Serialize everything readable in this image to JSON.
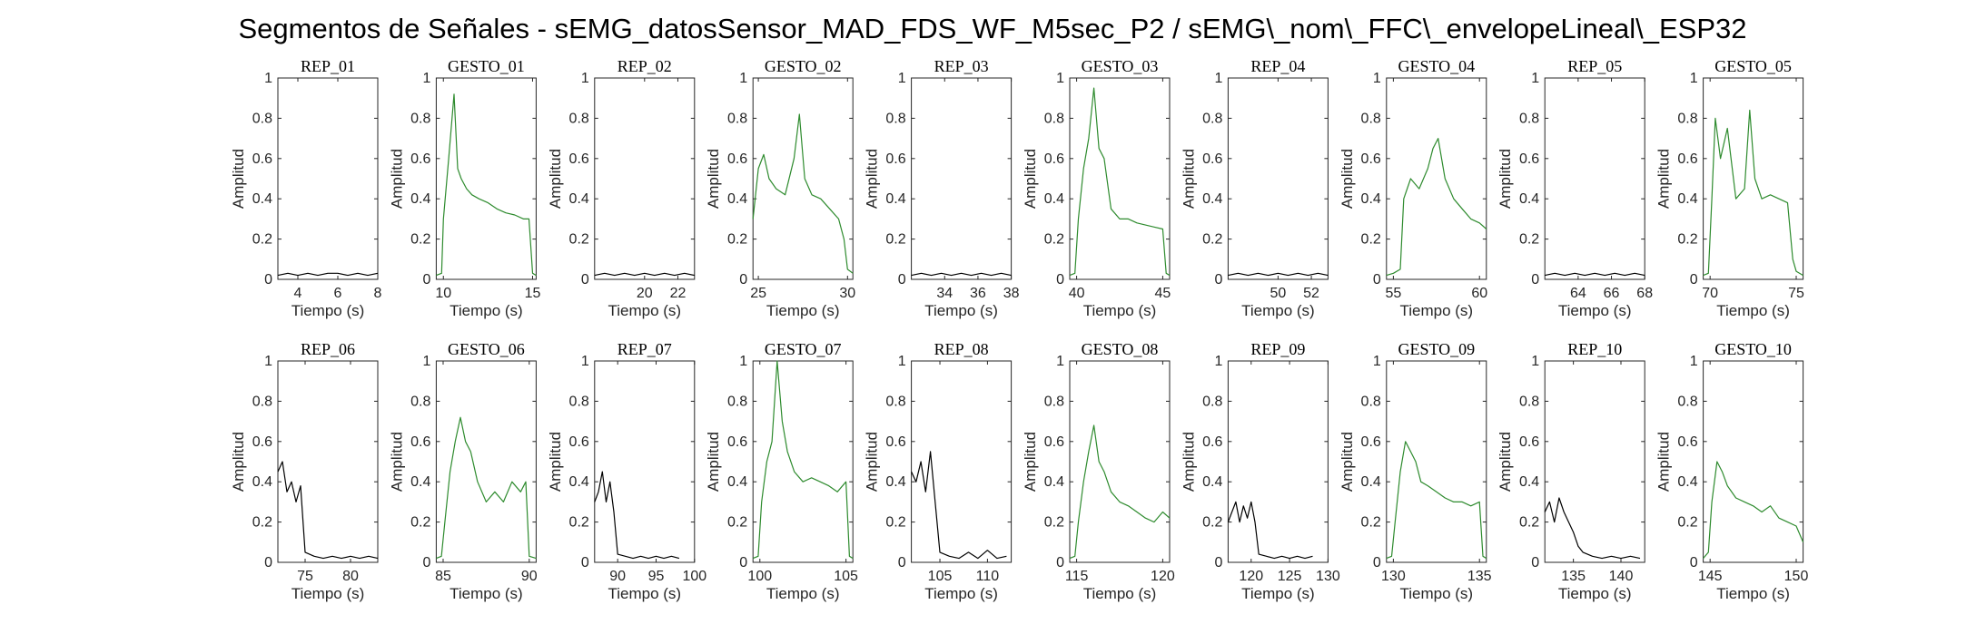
{
  "figure": {
    "title": "Segmentos de Señales - sEMG_datosSensor_MAD_FDS_WF_M5sec_P2 / sEMG\\_nom\\_FFC\\_envelopeLineal\\_ESP32"
  },
  "colors": {
    "rep": "#000000",
    "gesto": "#2e8b2e",
    "axes": "#262626"
  },
  "chart_data": [
    {
      "type": "line",
      "title": "REP_01",
      "xlabel": "Tiempo (s)",
      "ylabel": "Amplitud",
      "xlim": [
        3,
        8
      ],
      "ylim": [
        0,
        1
      ],
      "xticks": [
        4,
        6,
        8
      ],
      "yticks": [
        0,
        0.2,
        0.4,
        0.6,
        0.8,
        1
      ],
      "color": "#000000",
      "x": [
        3.0,
        3.5,
        4.0,
        4.5,
        5.0,
        5.5,
        6.0,
        6.5,
        7.0,
        7.5,
        8.0
      ],
      "y": [
        0.02,
        0.03,
        0.02,
        0.03,
        0.02,
        0.03,
        0.03,
        0.02,
        0.03,
        0.02,
        0.03
      ]
    },
    {
      "type": "line",
      "title": "GESTO_01",
      "xlabel": "Tiempo (s)",
      "ylabel": "Amplitud",
      "xlim": [
        9.6,
        15.2
      ],
      "ylim": [
        0,
        1
      ],
      "xticks": [
        10,
        15
      ],
      "yticks": [
        0,
        0.2,
        0.4,
        0.6,
        0.8,
        1
      ],
      "color": "#2e8b2e",
      "x": [
        9.6,
        9.9,
        10.0,
        10.3,
        10.6,
        10.8,
        11.0,
        11.3,
        11.6,
        12.0,
        12.5,
        13.0,
        13.5,
        14.0,
        14.5,
        14.8,
        15.0,
        15.2
      ],
      "y": [
        0.02,
        0.03,
        0.3,
        0.6,
        0.92,
        0.55,
        0.5,
        0.45,
        0.42,
        0.4,
        0.38,
        0.35,
        0.33,
        0.32,
        0.3,
        0.3,
        0.03,
        0.02
      ]
    },
    {
      "type": "line",
      "title": "REP_02",
      "xlabel": "Tiempo (s)",
      "ylabel": "Amplitud",
      "xlim": [
        17,
        23
      ],
      "ylim": [
        0,
        1
      ],
      "xticks": [
        20,
        22
      ],
      "yticks": [
        0,
        0.2,
        0.4,
        0.6,
        0.8,
        1
      ],
      "color": "#000000",
      "x": [
        17,
        17.6,
        18.2,
        18.8,
        19.4,
        20,
        20.6,
        21.2,
        21.8,
        22.4,
        23
      ],
      "y": [
        0.02,
        0.03,
        0.02,
        0.03,
        0.02,
        0.03,
        0.02,
        0.03,
        0.02,
        0.03,
        0.02
      ]
    },
    {
      "type": "line",
      "title": "GESTO_02",
      "xlabel": "Tiempo (s)",
      "ylabel": "Amplitud",
      "xlim": [
        24.7,
        30.3
      ],
      "ylim": [
        0,
        1
      ],
      "xticks": [
        25,
        30
      ],
      "yticks": [
        0,
        0.2,
        0.4,
        0.6,
        0.8,
        1
      ],
      "color": "#2e8b2e",
      "x": [
        24.7,
        25.0,
        25.3,
        25.6,
        26.0,
        26.5,
        27.0,
        27.3,
        27.6,
        28.0,
        28.5,
        29.0,
        29.5,
        29.8,
        30.0,
        30.3
      ],
      "y": [
        0.3,
        0.55,
        0.62,
        0.5,
        0.45,
        0.42,
        0.6,
        0.82,
        0.5,
        0.42,
        0.4,
        0.35,
        0.3,
        0.2,
        0.05,
        0.03
      ]
    },
    {
      "type": "line",
      "title": "REP_03",
      "xlabel": "Tiempo (s)",
      "ylabel": "Amplitud",
      "xlim": [
        32,
        38
      ],
      "ylim": [
        0,
        1
      ],
      "xticks": [
        34,
        36,
        38
      ],
      "yticks": [
        0,
        0.2,
        0.4,
        0.6,
        0.8,
        1
      ],
      "color": "#000000",
      "x": [
        32,
        32.6,
        33.2,
        33.8,
        34.4,
        35,
        35.6,
        36.2,
        36.8,
        37.4,
        38
      ],
      "y": [
        0.02,
        0.03,
        0.02,
        0.03,
        0.02,
        0.03,
        0.02,
        0.03,
        0.02,
        0.03,
        0.02
      ]
    },
    {
      "type": "line",
      "title": "GESTO_03",
      "xlabel": "Tiempo (s)",
      "ylabel": "Amplitud",
      "xlim": [
        39.6,
        45.4
      ],
      "ylim": [
        0,
        1
      ],
      "xticks": [
        40,
        45
      ],
      "yticks": [
        0,
        0.2,
        0.4,
        0.6,
        0.8,
        1
      ],
      "color": "#2e8b2e",
      "x": [
        39.6,
        39.9,
        40.1,
        40.4,
        40.7,
        41.0,
        41.3,
        41.6,
        42.0,
        42.5,
        43.0,
        43.5,
        44.0,
        44.5,
        45.0,
        45.2,
        45.4
      ],
      "y": [
        0.02,
        0.03,
        0.3,
        0.55,
        0.7,
        0.95,
        0.65,
        0.6,
        0.35,
        0.3,
        0.3,
        0.28,
        0.27,
        0.26,
        0.25,
        0.03,
        0.02
      ]
    },
    {
      "type": "line",
      "title": "REP_04",
      "xlabel": "Tiempo (s)",
      "ylabel": "Amplitud",
      "xlim": [
        47,
        53
      ],
      "ylim": [
        0,
        1
      ],
      "xticks": [
        50,
        52
      ],
      "yticks": [
        0,
        0.2,
        0.4,
        0.6,
        0.8,
        1
      ],
      "color": "#000000",
      "x": [
        47,
        47.6,
        48.2,
        48.8,
        49.4,
        50,
        50.6,
        51.2,
        51.8,
        52.4,
        53
      ],
      "y": [
        0.02,
        0.03,
        0.02,
        0.03,
        0.02,
        0.03,
        0.02,
        0.03,
        0.02,
        0.03,
        0.02
      ]
    },
    {
      "type": "line",
      "title": "GESTO_04",
      "xlabel": "Tiempo (s)",
      "ylabel": "Amplitud",
      "xlim": [
        54.6,
        60.4
      ],
      "ylim": [
        0,
        1
      ],
      "xticks": [
        55,
        60
      ],
      "yticks": [
        0,
        0.2,
        0.4,
        0.6,
        0.8,
        1
      ],
      "color": "#2e8b2e",
      "x": [
        54.6,
        55.0,
        55.4,
        55.6,
        56.0,
        56.5,
        57.0,
        57.3,
        57.6,
        58.0,
        58.5,
        59.0,
        59.5,
        60.0,
        60.4
      ],
      "y": [
        0.02,
        0.03,
        0.05,
        0.4,
        0.5,
        0.45,
        0.55,
        0.65,
        0.7,
        0.5,
        0.4,
        0.35,
        0.3,
        0.28,
        0.25
      ]
    },
    {
      "type": "line",
      "title": "REP_05",
      "xlabel": "Tiempo (s)",
      "ylabel": "Amplitud",
      "xlim": [
        62,
        68
      ],
      "ylim": [
        0,
        1
      ],
      "xticks": [
        64,
        66,
        68
      ],
      "yticks": [
        0,
        0.2,
        0.4,
        0.6,
        0.8,
        1
      ],
      "color": "#000000",
      "x": [
        62,
        62.6,
        63.2,
        63.8,
        64.4,
        65,
        65.6,
        66.2,
        66.8,
        67.4,
        68
      ],
      "y": [
        0.02,
        0.03,
        0.02,
        0.03,
        0.02,
        0.03,
        0.02,
        0.03,
        0.02,
        0.03,
        0.02
      ]
    },
    {
      "type": "line",
      "title": "GESTO_05",
      "xlabel": "Tiempo (s)",
      "ylabel": "Amplitud",
      "xlim": [
        69.6,
        75.4
      ],
      "ylim": [
        0,
        1
      ],
      "xticks": [
        70,
        75
      ],
      "yticks": [
        0,
        0.2,
        0.4,
        0.6,
        0.8,
        1
      ],
      "color": "#2e8b2e",
      "x": [
        69.6,
        69.9,
        70.1,
        70.3,
        70.6,
        71.0,
        71.5,
        72.0,
        72.3,
        72.6,
        73.0,
        73.5,
        74.0,
        74.5,
        74.8,
        75.0,
        75.4
      ],
      "y": [
        0.02,
        0.03,
        0.4,
        0.8,
        0.6,
        0.75,
        0.4,
        0.45,
        0.84,
        0.5,
        0.4,
        0.42,
        0.4,
        0.38,
        0.1,
        0.04,
        0.02
      ]
    },
    {
      "type": "line",
      "title": "REP_06",
      "xlabel": "Tiempo (s)",
      "ylabel": "Amplitud",
      "xlim": [
        72,
        83
      ],
      "ylim": [
        0,
        1
      ],
      "xticks": [
        75,
        80
      ],
      "yticks": [
        0,
        0.2,
        0.4,
        0.6,
        0.8,
        1
      ],
      "color": "#000000",
      "x": [
        72,
        72.5,
        73,
        73.5,
        74,
        74.5,
        75,
        76,
        77,
        78,
        79,
        80,
        81,
        82,
        83
      ],
      "y": [
        0.45,
        0.5,
        0.35,
        0.4,
        0.3,
        0.38,
        0.05,
        0.03,
        0.02,
        0.03,
        0.02,
        0.03,
        0.02,
        0.03,
        0.02
      ]
    },
    {
      "type": "line",
      "title": "GESTO_06",
      "xlabel": "Tiempo (s)",
      "ylabel": "Amplitud",
      "xlim": [
        84.6,
        90.4
      ],
      "ylim": [
        0,
        1
      ],
      "xticks": [
        85,
        90
      ],
      "yticks": [
        0,
        0.2,
        0.4,
        0.6,
        0.8,
        1
      ],
      "color": "#2e8b2e",
      "x": [
        84.6,
        84.9,
        85.1,
        85.4,
        85.7,
        86.0,
        86.3,
        86.6,
        87.0,
        87.5,
        88.0,
        88.5,
        89.0,
        89.5,
        89.8,
        90.0,
        90.4
      ],
      "y": [
        0.02,
        0.03,
        0.2,
        0.45,
        0.6,
        0.72,
        0.6,
        0.55,
        0.4,
        0.3,
        0.35,
        0.3,
        0.4,
        0.35,
        0.4,
        0.03,
        0.02
      ]
    },
    {
      "type": "line",
      "title": "REP_07",
      "xlabel": "Tiempo (s)",
      "ylabel": "Amplitud",
      "xlim": [
        87,
        100
      ],
      "ylim": [
        0,
        1
      ],
      "xticks": [
        90,
        95,
        100
      ],
      "yticks": [
        0,
        0.2,
        0.4,
        0.6,
        0.8,
        1
      ],
      "color": "#000000",
      "x": [
        87,
        87.5,
        88,
        88.5,
        89,
        89.5,
        90,
        91,
        92,
        93,
        94,
        95,
        96,
        97,
        98
      ],
      "y": [
        0.3,
        0.35,
        0.45,
        0.3,
        0.4,
        0.25,
        0.04,
        0.03,
        0.02,
        0.03,
        0.02,
        0.03,
        0.02,
        0.03,
        0.02
      ]
    },
    {
      "type": "line",
      "title": "GESTO_07",
      "xlabel": "Tiempo (s)",
      "ylabel": "Amplitud",
      "xlim": [
        99.6,
        105.4
      ],
      "ylim": [
        0,
        1
      ],
      "xticks": [
        100,
        105
      ],
      "yticks": [
        0,
        0.2,
        0.4,
        0.6,
        0.8,
        1
      ],
      "color": "#2e8b2e",
      "x": [
        99.6,
        99.9,
        100.1,
        100.4,
        100.7,
        101.0,
        101.3,
        101.6,
        102.0,
        102.5,
        103.0,
        103.5,
        104.0,
        104.5,
        105.0,
        105.2,
        105.4
      ],
      "y": [
        0.02,
        0.03,
        0.3,
        0.5,
        0.6,
        1.0,
        0.7,
        0.55,
        0.45,
        0.4,
        0.42,
        0.4,
        0.38,
        0.35,
        0.4,
        0.03,
        0.02
      ]
    },
    {
      "type": "line",
      "title": "REP_08",
      "xlabel": "Tiempo (s)",
      "ylabel": "Amplitud",
      "xlim": [
        102,
        112.5
      ],
      "ylim": [
        0,
        1
      ],
      "xticks": [
        105,
        110
      ],
      "yticks": [
        0,
        0.2,
        0.4,
        0.6,
        0.8,
        1
      ],
      "color": "#000000",
      "x": [
        102,
        102.5,
        103,
        103.5,
        104,
        104.5,
        105,
        106,
        107,
        108,
        109,
        110,
        111,
        112
      ],
      "y": [
        0.45,
        0.4,
        0.5,
        0.35,
        0.55,
        0.3,
        0.05,
        0.03,
        0.02,
        0.05,
        0.02,
        0.06,
        0.02,
        0.03
      ]
    },
    {
      "type": "line",
      "title": "GESTO_08",
      "xlabel": "Tiempo (s)",
      "ylabel": "Amplitud",
      "xlim": [
        114.6,
        120.4
      ],
      "ylim": [
        0,
        1
      ],
      "xticks": [
        115,
        120
      ],
      "yticks": [
        0,
        0.2,
        0.4,
        0.6,
        0.8,
        1
      ],
      "color": "#2e8b2e",
      "x": [
        114.6,
        114.9,
        115.1,
        115.4,
        115.7,
        116.0,
        116.3,
        116.6,
        117.0,
        117.5,
        118.0,
        118.5,
        119.0,
        119.5,
        120.0,
        120.4
      ],
      "y": [
        0.02,
        0.03,
        0.2,
        0.4,
        0.55,
        0.68,
        0.5,
        0.45,
        0.35,
        0.3,
        0.28,
        0.25,
        0.22,
        0.2,
        0.25,
        0.22
      ]
    },
    {
      "type": "line",
      "title": "REP_09",
      "xlabel": "Tiempo (s)",
      "ylabel": "Amplitud",
      "xlim": [
        117,
        130
      ],
      "ylim": [
        0,
        1
      ],
      "xticks": [
        120,
        125,
        130
      ],
      "yticks": [
        0,
        0.2,
        0.4,
        0.6,
        0.8,
        1
      ],
      "color": "#000000",
      "x": [
        117,
        117.5,
        118,
        118.5,
        119,
        119.5,
        120,
        120.5,
        121,
        122,
        123,
        124,
        125,
        126,
        127,
        128
      ],
      "y": [
        0.2,
        0.25,
        0.3,
        0.2,
        0.28,
        0.22,
        0.3,
        0.2,
        0.04,
        0.03,
        0.02,
        0.03,
        0.02,
        0.03,
        0.02,
        0.03
      ]
    },
    {
      "type": "line",
      "title": "GESTO_09",
      "xlabel": "Tiempo (s)",
      "ylabel": "Amplitud",
      "xlim": [
        129.6,
        135.4
      ],
      "ylim": [
        0,
        1
      ],
      "xticks": [
        130,
        135
      ],
      "yticks": [
        0,
        0.2,
        0.4,
        0.6,
        0.8,
        1
      ],
      "color": "#2e8b2e",
      "x": [
        129.6,
        129.9,
        130.1,
        130.4,
        130.7,
        131.0,
        131.3,
        131.6,
        132.0,
        132.5,
        133.0,
        133.5,
        134.0,
        134.5,
        135.0,
        135.2,
        135.4
      ],
      "y": [
        0.02,
        0.03,
        0.2,
        0.45,
        0.6,
        0.55,
        0.5,
        0.4,
        0.38,
        0.35,
        0.32,
        0.3,
        0.3,
        0.28,
        0.3,
        0.03,
        0.02
      ]
    },
    {
      "type": "line",
      "title": "REP_10",
      "xlabel": "Tiempo (s)",
      "ylabel": "Amplitud",
      "xlim": [
        132,
        142.5
      ],
      "ylim": [
        0,
        1
      ],
      "xticks": [
        135,
        140
      ],
      "yticks": [
        0,
        0.2,
        0.4,
        0.6,
        0.8,
        1
      ],
      "color": "#000000",
      "x": [
        132,
        132.5,
        133,
        133.5,
        134,
        134.5,
        135,
        135.5,
        136,
        137,
        138,
        139,
        140,
        141,
        142
      ],
      "y": [
        0.25,
        0.3,
        0.2,
        0.32,
        0.25,
        0.2,
        0.15,
        0.08,
        0.05,
        0.03,
        0.02,
        0.03,
        0.02,
        0.03,
        0.02
      ]
    },
    {
      "type": "line",
      "title": "GESTO_10",
      "xlabel": "Tiempo (s)",
      "ylabel": "Amplitud",
      "xlim": [
        144.6,
        150.4
      ],
      "ylim": [
        0,
        1
      ],
      "xticks": [
        145,
        150
      ],
      "yticks": [
        0,
        0.2,
        0.4,
        0.6,
        0.8,
        1
      ],
      "color": "#2e8b2e",
      "x": [
        144.6,
        144.9,
        145.1,
        145.4,
        145.7,
        146.0,
        146.5,
        147.0,
        147.5,
        148.0,
        148.5,
        149.0,
        149.5,
        150.0,
        150.4
      ],
      "y": [
        0.02,
        0.05,
        0.3,
        0.5,
        0.45,
        0.38,
        0.32,
        0.3,
        0.28,
        0.25,
        0.28,
        0.22,
        0.2,
        0.18,
        0.1
      ]
    }
  ]
}
